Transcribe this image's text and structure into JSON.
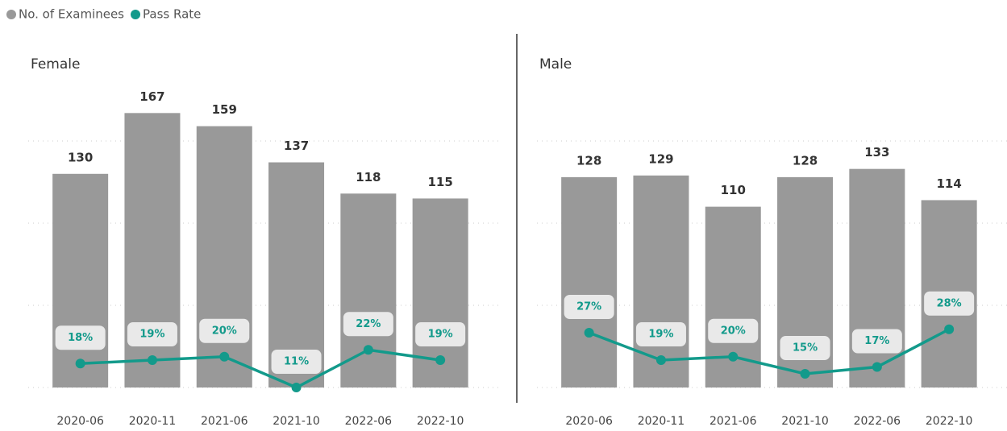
{
  "chart_data": {
    "type": "combo",
    "legend": [
      {
        "name": "No. of Examinees",
        "color": "#999999"
      },
      {
        "name": "Pass Rate",
        "color": "#139a8b"
      }
    ],
    "ylim": [
      0,
      175
    ],
    "yticks": [
      0,
      50,
      100,
      150
    ],
    "y2lim": [
      11,
      95
    ],
    "grid": true,
    "panels": [
      {
        "title": "Female",
        "categories": [
          "2020-06",
          "2020-11",
          "2021-06",
          "2021-10",
          "2022-06",
          "2022-10"
        ],
        "series": [
          {
            "values": [
              130,
              167,
              159,
              137,
              118,
              115
            ]
          },
          {
            "axis": "y2",
            "values": [
              18,
              19,
              20,
              11,
              22,
              19
            ],
            "value_labels": [
              "18%",
              "19%",
              "20%",
              "11%",
              "22%",
              "19%"
            ]
          }
        ]
      },
      {
        "title": "Male",
        "categories": [
          "2020-06",
          "2020-11",
          "2021-06",
          "2021-10",
          "2022-06",
          "2022-10"
        ],
        "series": [
          {
            "values": [
              128,
              129,
              110,
              128,
              133,
              114
            ]
          },
          {
            "axis": "y2",
            "values": [
              27,
              19,
              20,
              15,
              17,
              28
            ],
            "value_labels": [
              "27%",
              "19%",
              "20%",
              "15%",
              "17%",
              "28%"
            ]
          }
        ]
      }
    ]
  }
}
